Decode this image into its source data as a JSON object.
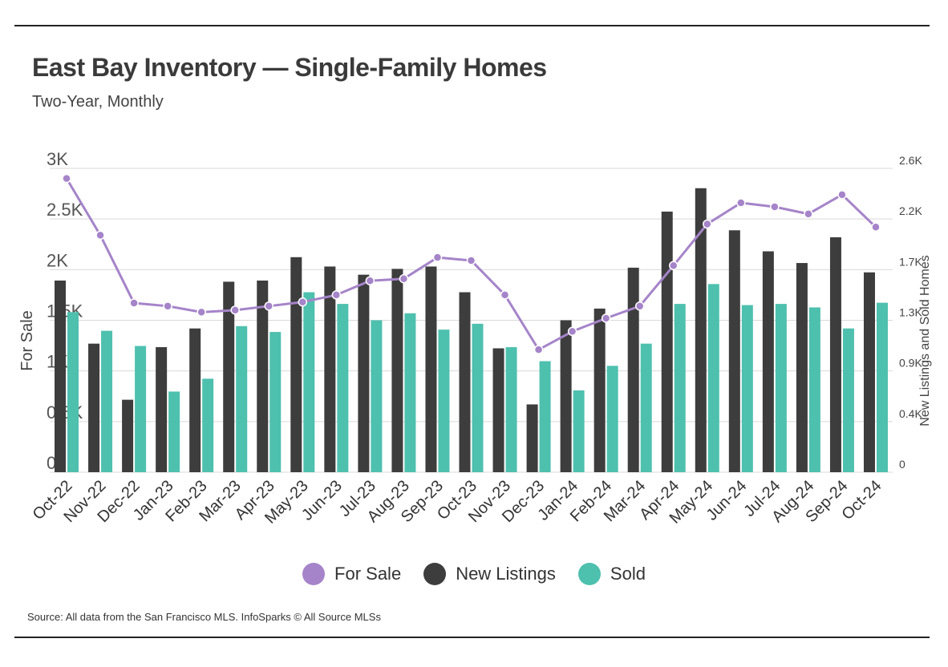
{
  "title": "East Bay Inventory — Single-Family Homes",
  "subtitle": "Two-Year, Monthly",
  "source": "Source:  All data from the San Francisco MLS. InfoSparks © All Source MLSs",
  "colors": {
    "for_sale": "#a584c9",
    "new_listings": "#3d3d3d",
    "sold": "#4ec0ae",
    "grid": "#d9d9d9"
  },
  "chart_data": {
    "type": "bar",
    "categories": [
      "Oct-22",
      "Nov-22",
      "Dec-22",
      "Jan-23",
      "Feb-23",
      "Mar-23",
      "Apr-23",
      "May-23",
      "Jun-23",
      "Jul-23",
      "Aug-23",
      "Sep-23",
      "Oct-23",
      "Nov-23",
      "Dec-23",
      "Jan-24",
      "Feb-24",
      "Mar-24",
      "Apr-24",
      "May-24",
      "Jun-24",
      "Jul-24",
      "Aug-24",
      "Sep-24",
      "Oct-24"
    ],
    "ylabel": "For Sale",
    "y2label": "New Listings and Sold Homes",
    "ylim": [
      0,
      3000
    ],
    "y2lim": [
      0,
      2600
    ],
    "yticks": [
      "0",
      "0.5K",
      "1K",
      "1.5K",
      "2K",
      "2.5K",
      "3K"
    ],
    "y2ticks": [
      "0",
      "0.4K",
      "0.9K",
      "1.3K",
      "1.7K",
      "2.2K",
      "2.6K"
    ],
    "legend_position": "bottom",
    "series": [
      {
        "name": "For Sale",
        "type": "line",
        "axis": "left",
        "values": [
          2900,
          2340,
          1670,
          1640,
          1580,
          1600,
          1640,
          1680,
          1750,
          1890,
          1910,
          2120,
          2090,
          1750,
          1210,
          1390,
          1520,
          1640,
          2040,
          2450,
          2660,
          2620,
          2550,
          2740,
          2420
        ]
      },
      {
        "name": "New Listings",
        "type": "bar",
        "axis": "right",
        "values": [
          1640,
          1100,
          620,
          1070,
          1230,
          1630,
          1640,
          1840,
          1760,
          1690,
          1740,
          1760,
          1540,
          1060,
          580,
          1300,
          1400,
          1750,
          2230,
          2430,
          2070,
          1890,
          1790,
          2010,
          1710
        ]
      },
      {
        "name": "Sold",
        "type": "bar",
        "axis": "right",
        "values": [
          1370,
          1210,
          1080,
          690,
          800,
          1250,
          1200,
          1540,
          1440,
          1300,
          1360,
          1220,
          1270,
          1070,
          950,
          700,
          910,
          1100,
          1440,
          1610,
          1430,
          1440,
          1410,
          1230,
          1450
        ]
      }
    ]
  }
}
